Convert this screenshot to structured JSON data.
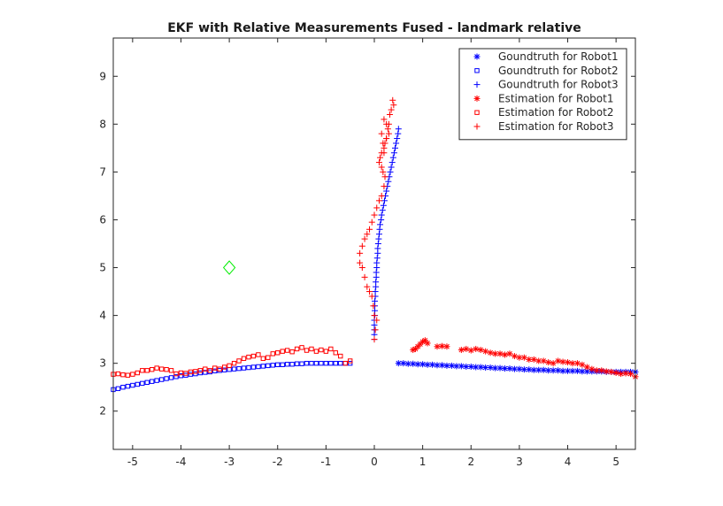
{
  "chart_data": {
    "type": "scatter",
    "title": "EKF with Relative Measurements Fused - landmark relative",
    "xlabel": "",
    "ylabel": "",
    "xlim": [
      -5.4,
      5.4
    ],
    "ylim": [
      1.2,
      9.8
    ],
    "xticks": [
      -5,
      -4,
      -3,
      -2,
      -1,
      0,
      1,
      2,
      3,
      4,
      5
    ],
    "yticks": [
      2,
      3,
      4,
      5,
      6,
      7,
      8,
      9
    ],
    "grid": false,
    "legend_position": "top-right",
    "landmark": {
      "x": -3,
      "y": 5,
      "marker": "diamond",
      "color": "#00ee00"
    },
    "series": [
      {
        "name": "Goundtruth for Robot1",
        "marker": "asterisk",
        "color": "#0000ff",
        "x": [
          0.5,
          0.6,
          0.7,
          0.8,
          0.9,
          1.0,
          1.1,
          1.2,
          1.3,
          1.4,
          1.5,
          1.6,
          1.7,
          1.8,
          1.9,
          2.0,
          2.1,
          2.2,
          2.3,
          2.4,
          2.5,
          2.6,
          2.7,
          2.8,
          2.9,
          3.0,
          3.1,
          3.2,
          3.3,
          3.4,
          3.5,
          3.6,
          3.7,
          3.8,
          3.9,
          4.0,
          4.1,
          4.2,
          4.3,
          4.4,
          4.5,
          4.6,
          4.7,
          4.8,
          4.9,
          5.0,
          5.1,
          5.2,
          5.3,
          5.4
        ],
        "y": [
          3.0,
          3.0,
          2.99,
          2.99,
          2.98,
          2.98,
          2.97,
          2.97,
          2.96,
          2.96,
          2.95,
          2.95,
          2.94,
          2.94,
          2.93,
          2.93,
          2.92,
          2.92,
          2.91,
          2.91,
          2.9,
          2.9,
          2.89,
          2.89,
          2.88,
          2.88,
          2.87,
          2.87,
          2.86,
          2.86,
          2.86,
          2.85,
          2.85,
          2.85,
          2.84,
          2.84,
          2.84,
          2.84,
          2.83,
          2.83,
          2.83,
          2.83,
          2.83,
          2.82,
          2.82,
          2.82,
          2.82,
          2.82,
          2.82,
          2.82
        ]
      },
      {
        "name": "Goundtruth for Robot2",
        "marker": "square",
        "color": "#0000ff",
        "x": [
          -5.4,
          -5.3,
          -5.2,
          -5.1,
          -5.0,
          -4.9,
          -4.8,
          -4.7,
          -4.6,
          -4.5,
          -4.4,
          -4.3,
          -4.2,
          -4.1,
          -4.0,
          -3.9,
          -3.8,
          -3.7,
          -3.6,
          -3.5,
          -3.4,
          -3.3,
          -3.2,
          -3.1,
          -3.0,
          -2.9,
          -2.8,
          -2.7,
          -2.6,
          -2.5,
          -2.4,
          -2.3,
          -2.2,
          -2.1,
          -2.0,
          -1.9,
          -1.8,
          -1.7,
          -1.6,
          -1.5,
          -1.4,
          -1.3,
          -1.2,
          -1.1,
          -1.0,
          -0.9,
          -0.8,
          -0.7,
          -0.6,
          -0.5
        ],
        "y": [
          2.45,
          2.47,
          2.5,
          2.52,
          2.54,
          2.56,
          2.58,
          2.6,
          2.62,
          2.64,
          2.66,
          2.68,
          2.7,
          2.72,
          2.74,
          2.75,
          2.77,
          2.78,
          2.8,
          2.81,
          2.82,
          2.84,
          2.85,
          2.86,
          2.87,
          2.88,
          2.89,
          2.9,
          2.91,
          2.92,
          2.93,
          2.94,
          2.95,
          2.96,
          2.97,
          2.97,
          2.98,
          2.98,
          2.99,
          2.99,
          3.0,
          3.0,
          3.0,
          3.0,
          3.0,
          3.0,
          3.0,
          3.0,
          3.0,
          3.0
        ]
      },
      {
        "name": "Goundtruth for Robot3",
        "marker": "plus",
        "color": "#0000ff",
        "x": [
          0.0,
          0.0,
          0.0,
          0.0,
          0.0,
          0.01,
          0.01,
          0.01,
          0.01,
          0.02,
          0.02,
          0.03,
          0.03,
          0.04,
          0.04,
          0.05,
          0.05,
          0.06,
          0.07,
          0.07,
          0.08,
          0.09,
          0.1,
          0.11,
          0.12,
          0.14,
          0.15,
          0.17,
          0.19,
          0.21,
          0.23,
          0.25,
          0.27,
          0.29,
          0.31,
          0.33,
          0.35,
          0.37,
          0.39,
          0.41,
          0.43,
          0.45,
          0.47,
          0.49,
          0.5
        ],
        "y": [
          3.5,
          3.6,
          3.7,
          3.8,
          3.9,
          4.0,
          4.1,
          4.2,
          4.3,
          4.4,
          4.5,
          4.6,
          4.7,
          4.8,
          4.9,
          5.0,
          5.1,
          5.2,
          5.3,
          5.4,
          5.5,
          5.6,
          5.7,
          5.8,
          5.9,
          6.0,
          6.1,
          6.2,
          6.3,
          6.4,
          6.5,
          6.6,
          6.7,
          6.8,
          6.9,
          7.0,
          7.1,
          7.2,
          7.3,
          7.4,
          7.5,
          7.6,
          7.7,
          7.8,
          7.9
        ]
      },
      {
        "name": "Estimation for Robot1",
        "marker": "asterisk",
        "color": "#ff0000",
        "x": [
          0.8,
          0.85,
          0.9,
          0.95,
          1.0,
          1.05,
          1.1,
          1.3,
          1.4,
          1.5,
          1.8,
          1.9,
          2.0,
          2.1,
          2.2,
          2.3,
          2.4,
          2.5,
          2.6,
          2.7,
          2.8,
          2.9,
          3.0,
          3.1,
          3.2,
          3.3,
          3.4,
          3.5,
          3.6,
          3.7,
          3.8,
          3.9,
          4.0,
          4.1,
          4.2,
          4.3,
          4.4,
          4.5,
          4.6,
          4.7,
          4.8,
          4.9,
          5.0,
          5.1,
          5.2,
          5.3,
          5.4
        ],
        "y": [
          3.28,
          3.3,
          3.35,
          3.4,
          3.45,
          3.48,
          3.42,
          3.35,
          3.36,
          3.35,
          3.28,
          3.3,
          3.27,
          3.3,
          3.28,
          3.25,
          3.22,
          3.2,
          3.2,
          3.18,
          3.2,
          3.15,
          3.12,
          3.12,
          3.08,
          3.08,
          3.05,
          3.05,
          3.02,
          3.0,
          3.05,
          3.03,
          3.02,
          3.0,
          3.0,
          2.97,
          2.92,
          2.88,
          2.85,
          2.85,
          2.83,
          2.82,
          2.8,
          2.78,
          2.79,
          2.78,
          2.72
        ]
      },
      {
        "name": "Estimation for Robot2",
        "marker": "square",
        "color": "#ff0000",
        "x": [
          -5.4,
          -5.3,
          -5.2,
          -5.1,
          -5.0,
          -4.9,
          -4.8,
          -4.7,
          -4.6,
          -4.5,
          -4.4,
          -4.3,
          -4.2,
          -4.1,
          -4.0,
          -3.9,
          -3.8,
          -3.7,
          -3.6,
          -3.5,
          -3.4,
          -3.3,
          -3.2,
          -3.1,
          -3.0,
          -2.9,
          -2.8,
          -2.7,
          -2.6,
          -2.5,
          -2.4,
          -2.3,
          -2.2,
          -2.1,
          -2.0,
          -1.9,
          -1.8,
          -1.7,
          -1.6,
          -1.5,
          -1.4,
          -1.3,
          -1.2,
          -1.1,
          -1.0,
          -0.9,
          -0.8,
          -0.7,
          -0.6,
          -0.5
        ],
        "y": [
          2.77,
          2.78,
          2.76,
          2.75,
          2.77,
          2.8,
          2.85,
          2.85,
          2.87,
          2.9,
          2.88,
          2.87,
          2.85,
          2.78,
          2.8,
          2.79,
          2.82,
          2.83,
          2.85,
          2.88,
          2.85,
          2.9,
          2.88,
          2.92,
          2.95,
          3.0,
          3.05,
          3.1,
          3.13,
          3.15,
          3.18,
          3.1,
          3.12,
          3.2,
          3.22,
          3.25,
          3.27,
          3.24,
          3.3,
          3.33,
          3.27,
          3.3,
          3.25,
          3.28,
          3.25,
          3.3,
          3.22,
          3.15,
          3.0,
          3.05
        ]
      },
      {
        "name": "Estimation for Robot3",
        "marker": "plus",
        "color": "#ff0000",
        "x": [
          0.0,
          0.02,
          0.05,
          0.0,
          -0.02,
          -0.05,
          -0.1,
          -0.15,
          -0.2,
          -0.25,
          -0.3,
          -0.3,
          -0.25,
          -0.2,
          -0.15,
          -0.1,
          -0.05,
          0.0,
          0.05,
          0.1,
          0.15,
          0.2,
          0.22,
          0.18,
          0.15,
          0.1,
          0.12,
          0.15,
          0.2,
          0.22,
          0.25,
          0.3,
          0.28,
          0.25,
          0.2,
          0.15,
          0.18,
          0.2,
          0.25,
          0.3,
          0.32,
          0.35,
          0.4,
          0.38
        ],
        "y": [
          3.5,
          3.7,
          3.9,
          4.0,
          4.2,
          4.4,
          4.5,
          4.6,
          4.8,
          5.0,
          5.1,
          5.3,
          5.45,
          5.6,
          5.7,
          5.8,
          5.95,
          6.1,
          6.25,
          6.4,
          6.5,
          6.7,
          6.9,
          7.0,
          7.1,
          7.2,
          7.3,
          7.4,
          7.5,
          7.6,
          7.7,
          7.8,
          7.9,
          8.0,
          8.1,
          7.8,
          7.6,
          7.4,
          7.7,
          8.0,
          8.2,
          8.3,
          8.4,
          8.5
        ]
      }
    ]
  }
}
